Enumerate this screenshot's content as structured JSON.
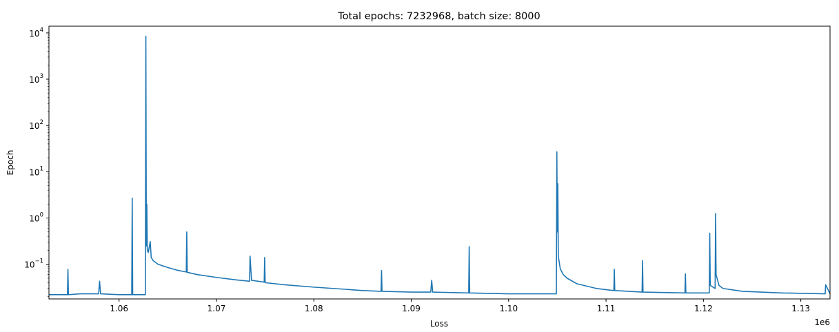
{
  "chart_data": {
    "type": "line",
    "title": "Total epochs: 7232968, batch size: 8000",
    "xlabel": "Loss",
    "ylabel": "Epoch",
    "x_offset_label": "1e6",
    "y_scale": "log",
    "xlim": [
      1052800,
      1133000
    ],
    "ylim": [
      0.0178,
      14000
    ],
    "grid": false,
    "line_color": "#1f77b4",
    "x_ticks": [
      {
        "value": 1060000,
        "label": "1.06"
      },
      {
        "value": 1070000,
        "label": "1.07"
      },
      {
        "value": 1080000,
        "label": "1.08"
      },
      {
        "value": 1090000,
        "label": "1.09"
      },
      {
        "value": 1100000,
        "label": "1.10"
      },
      {
        "value": 1110000,
        "label": "1.11"
      },
      {
        "value": 1120000,
        "label": "1.12"
      },
      {
        "value": 1130000,
        "label": "1.13"
      }
    ],
    "y_ticks": [
      {
        "value": 0.1,
        "base": "10",
        "exp": "−1"
      },
      {
        "value": 1,
        "base": "10",
        "exp": "0"
      },
      {
        "value": 10,
        "base": "10",
        "exp": "1"
      },
      {
        "value": 100,
        "base": "10",
        "exp": "2"
      },
      {
        "value": 1000,
        "base": "10",
        "exp": "3"
      },
      {
        "value": 10000,
        "base": "10",
        "exp": "4"
      }
    ],
    "series": [
      {
        "values": [
          [
            1052800,
            0.022
          ],
          [
            1054000,
            0.022
          ],
          [
            1054700,
            0.022
          ],
          [
            1054750,
            0.078
          ],
          [
            1054800,
            0.022
          ],
          [
            1056000,
            0.023
          ],
          [
            1057900,
            0.023
          ],
          [
            1058000,
            0.043
          ],
          [
            1058100,
            0.023
          ],
          [
            1060000,
            0.022
          ],
          [
            1061300,
            0.022
          ],
          [
            1061350,
            2.7
          ],
          [
            1061400,
            0.022
          ],
          [
            1062700,
            0.022
          ],
          [
            1062750,
            8500
          ],
          [
            1062800,
            0.25
          ],
          [
            1062850,
            2.0
          ],
          [
            1062900,
            0.2
          ],
          [
            1063000,
            0.18
          ],
          [
            1063200,
            0.31
          ],
          [
            1063300,
            0.14
          ],
          [
            1063500,
            0.12
          ],
          [
            1064000,
            0.1
          ],
          [
            1065000,
            0.085
          ],
          [
            1066000,
            0.074
          ],
          [
            1066900,
            0.068
          ],
          [
            1066950,
            0.5
          ],
          [
            1067000,
            0.067
          ],
          [
            1068000,
            0.06
          ],
          [
            1070000,
            0.052
          ],
          [
            1072000,
            0.046
          ],
          [
            1073400,
            0.043
          ],
          [
            1073450,
            0.15
          ],
          [
            1073600,
            0.045
          ],
          [
            1074900,
            0.041
          ],
          [
            1074950,
            0.14
          ],
          [
            1075000,
            0.04
          ],
          [
            1077000,
            0.036
          ],
          [
            1080000,
            0.032
          ],
          [
            1083000,
            0.029
          ],
          [
            1085000,
            0.027
          ],
          [
            1086900,
            0.026
          ],
          [
            1086950,
            0.073
          ],
          [
            1087000,
            0.026
          ],
          [
            1090000,
            0.025
          ],
          [
            1092000,
            0.025
          ],
          [
            1092100,
            0.045
          ],
          [
            1092200,
            0.025
          ],
          [
            1095900,
            0.024
          ],
          [
            1095950,
            0.24
          ],
          [
            1096000,
            0.024
          ],
          [
            1100000,
            0.023
          ],
          [
            1104900,
            0.023
          ],
          [
            1104950,
            27
          ],
          [
            1105000,
            0.5
          ],
          [
            1105050,
            5.5
          ],
          [
            1105100,
            0.15
          ],
          [
            1105300,
            0.08
          ],
          [
            1105600,
            0.06
          ],
          [
            1106000,
            0.05
          ],
          [
            1107000,
            0.038
          ],
          [
            1109000,
            0.03
          ],
          [
            1110800,
            0.027
          ],
          [
            1110850,
            0.078
          ],
          [
            1110900,
            0.027
          ],
          [
            1113700,
            0.025
          ],
          [
            1113750,
            0.12
          ],
          [
            1113800,
            0.025
          ],
          [
            1118100,
            0.024
          ],
          [
            1118150,
            0.062
          ],
          [
            1118200,
            0.024
          ],
          [
            1120600,
            0.024
          ],
          [
            1120650,
            0.47
          ],
          [
            1120700,
            0.035
          ],
          [
            1121200,
            0.03
          ],
          [
            1121250,
            1.25
          ],
          [
            1121300,
            0.06
          ],
          [
            1121600,
            0.035
          ],
          [
            1122000,
            0.03
          ],
          [
            1124000,
            0.026
          ],
          [
            1128000,
            0.024
          ],
          [
            1132500,
            0.023
          ],
          [
            1132550,
            0.036
          ],
          [
            1133000,
            0.023
          ]
        ]
      }
    ]
  }
}
